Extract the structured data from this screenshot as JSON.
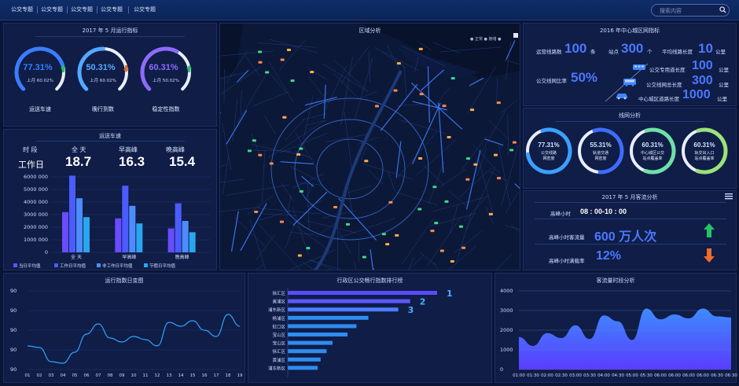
{
  "nav": {
    "items": [
      "公交专题",
      "公交专题",
      "公交专题",
      "公交专题",
      "公交专题"
    ],
    "search_placeholder": "搜索内容"
  },
  "ops": {
    "title": "2017 年 5 月运行指标",
    "gauges": [
      {
        "value": "77.31%",
        "sub": "上月 60.02%",
        "label": "运送车速",
        "trend": "up",
        "color": "#3b7dff",
        "fraction": 0.7731
      },
      {
        "value": "50.31%",
        "sub": "上月 60.02%",
        "label": "晚行到数",
        "trend": "down",
        "color": "#55a8ff",
        "fraction": 0.5031
      },
      {
        "value": "60.31%",
        "sub": "上月 50.02%",
        "label": "稳定性指数",
        "trend": "up",
        "color": "#8d6bff",
        "fraction": 0.6031
      }
    ]
  },
  "speed": {
    "title": "运送车速",
    "headers": [
      "时 段",
      "全 天",
      "早高峰",
      "晚高峰"
    ],
    "row_label": "工作日",
    "values": [
      "18.7",
      "16.3",
      "15.4"
    ],
    "legend": [
      "当日平均值",
      "工作日平均值",
      "非工作日平均值",
      "节假日平均值"
    ],
    "legend_colors": [
      "#6a4cff",
      "#4b5cff",
      "#4d8cff",
      "#28a6f0"
    ]
  },
  "map": {
    "title": "区域分析",
    "legend": "● 正常 ● 拥堵 ●"
  },
  "network": {
    "title": "2016 年中心城区网指标",
    "routes_label": "运营线路数",
    "routes_value": "100",
    "routes_unit": "条",
    "stations_label": "站点",
    "stations_value": "300",
    "stations_unit": "个",
    "avglen_label": "平均线路长度",
    "avglen_value": "10",
    "avglen_unit": "公里",
    "coverage_label": "公交线网比率",
    "coverage_value": "50%",
    "rows": [
      {
        "label": "公交专用道长度",
        "value": "100",
        "unit": "公里"
      },
      {
        "label": "公交线网总长度",
        "value": "300",
        "unit": "公里"
      },
      {
        "label": "中心城区道路长度",
        "value": "1000",
        "unit": "公里"
      }
    ]
  },
  "netana": {
    "title": "线网分析",
    "gauges": [
      {
        "value": "77.31%",
        "l1": "公交线路",
        "l2": "网密度",
        "color": "#3aa0ff",
        "fraction": 0.7731
      },
      {
        "value": "55.31%",
        "l1": "轨道交通",
        "l2": "网密度",
        "color": "#3f6cff",
        "fraction": 0.5531
      },
      {
        "value": "60.31%",
        "l1": "中心城区公交",
        "l2": "站点覆盖率",
        "color": "#6fe0a8",
        "fraction": 0.6031
      },
      {
        "value": "60.31%",
        "l1": "轨交出入口",
        "l2": "站点覆盖率",
        "color": "#9be27a",
        "fraction": 0.6031
      }
    ]
  },
  "passenger": {
    "title": "2017 年 5 月客流分析",
    "peak_hour_label": "高峰小时",
    "peak_hour_value": "08 : 00-10 : 00",
    "flow_label": "高峰小时客流量",
    "flow_value": "600 万人次",
    "load_label": "高峰小时满载率",
    "load_value": "12%"
  },
  "line_chart": {
    "title": "运行指数日变图"
  },
  "rank": {
    "title": "行政区公交畅行指数排行榜",
    "districts": [
      "徐汇区",
      "黄浦区",
      "浦东新区",
      "杨浦区",
      "虹口区",
      "宝山区",
      "宝山区",
      "徐汇区",
      "黄浦区",
      "浦东新区"
    ],
    "values": [
      100,
      82,
      74,
      54,
      46,
      40,
      30,
      26,
      22,
      20
    ],
    "top_ranks": [
      "1",
      "2",
      "3"
    ]
  },
  "flow": {
    "title": "客流量时段分析"
  },
  "chart_data": [
    {
      "type": "bar",
      "title": "运送车速",
      "categories": [
        "全 天",
        "早高峰",
        "晚高峰"
      ],
      "series": [
        {
          "name": "当日平均值",
          "values": [
            3200000,
            2700000,
            1900000
          ]
        },
        {
          "name": "工作日平均值",
          "values": [
            6100000,
            5300000,
            3900000
          ]
        },
        {
          "name": "非工作日平均值",
          "values": [
            4300000,
            3700000,
            2500000
          ]
        },
        {
          "name": "节假日平均值",
          "values": [
            2800000,
            2300000,
            1600000
          ]
        }
      ],
      "yticks": [
        "6000 000",
        "5000 000",
        "4000 000",
        "3000 000",
        "2000 000",
        "1000 000",
        "0"
      ],
      "ylim": [
        0,
        6000000
      ]
    },
    {
      "type": "line",
      "title": "运行指数日变图",
      "x": [
        "01",
        "02",
        "03",
        "04",
        "05",
        "06",
        "07",
        "08",
        "09",
        "10",
        "11",
        "12",
        "13",
        "14",
        "15",
        "16",
        "17",
        "18",
        "19"
      ],
      "y": [
        0.3,
        0.28,
        0.1,
        0.08,
        0.22,
        0.45,
        0.58,
        0.4,
        0.35,
        0.42,
        0.38,
        0.3,
        0.6,
        0.55,
        0.62,
        0.5,
        0.42,
        0.7,
        0.55
      ],
      "yticks": [
        "90",
        "90",
        "90",
        "90",
        "90"
      ],
      "ylim": [
        0,
        1
      ]
    },
    {
      "type": "area",
      "title": "客流量时段分析",
      "x": [
        "01:00",
        "01:30",
        "02:00",
        "02:30",
        "03:00",
        "03:30",
        "04:00",
        "04:30",
        "05:00",
        "05:30",
        "06:00",
        "06:00",
        "06:00",
        "06:00",
        "06:30",
        "06:30"
      ],
      "y": [
        1650,
        1200,
        1850,
        1600,
        2250,
        1550,
        2750,
        2450,
        1500,
        3100,
        2550,
        2800,
        2600,
        3100,
        2700,
        2650
      ],
      "yticks": [
        "4000",
        "3000",
        "2000",
        "1000",
        "0"
      ],
      "ylim": [
        0,
        4000
      ]
    }
  ]
}
